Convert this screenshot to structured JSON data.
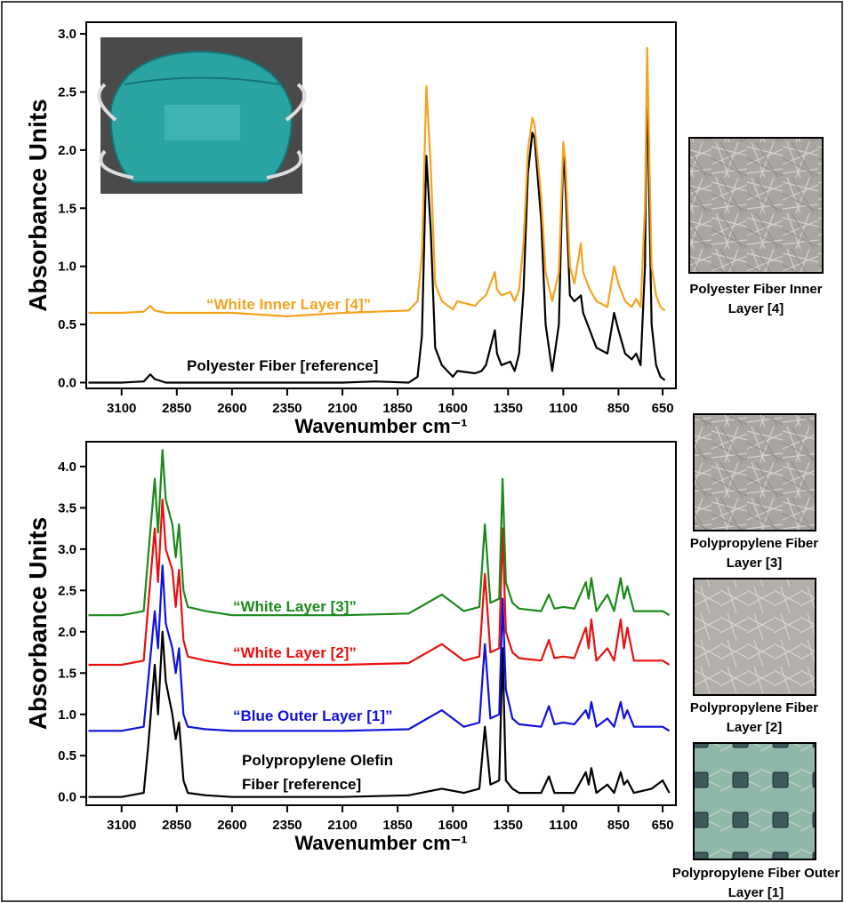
{
  "chart_data": [
    {
      "type": "line",
      "x_label": "Wavenumber cm⁻¹",
      "y_label": "Absorbance Units",
      "xlim": [
        3260,
        590
      ],
      "ylim": [
        -0.05,
        3.1
      ],
      "xticks": [
        3100,
        2850,
        2600,
        2350,
        2100,
        1850,
        1600,
        1350,
        1100,
        850,
        650
      ],
      "yticks": [
        {
          "value": 0,
          "label": "0.0"
        },
        0.5,
        {
          "value": 1,
          "label": "1.0"
        },
        1.5,
        {
          "value": 2,
          "label": "2.0"
        },
        2.5,
        {
          "value": 3,
          "label": "3.0"
        }
      ],
      "x": [
        3250,
        3100,
        3000,
        2970,
        2950,
        2900,
        2850,
        2600,
        2350,
        2100,
        1950,
        1800,
        1760,
        1740,
        1720,
        1700,
        1680,
        1650,
        1600,
        1580,
        1500,
        1470,
        1450,
        1410,
        1400,
        1380,
        1340,
        1320,
        1300,
        1280,
        1260,
        1240,
        1230,
        1200,
        1180,
        1150,
        1120,
        1100,
        1090,
        1070,
        1050,
        1020,
        1010,
        980,
        950,
        900,
        870,
        850,
        820,
        790,
        770,
        750,
        730,
        720,
        710,
        700,
        680,
        660,
        640
      ],
      "series": [
        {
          "name": "Polyester Fiber [reference]",
          "color": "#000000",
          "values": [
            0,
            0,
            0.01,
            0.07,
            0.03,
            0,
            0,
            0,
            0,
            0,
            0.01,
            0,
            0.05,
            0.4,
            1.95,
            1.3,
            0.3,
            0.15,
            0.05,
            0.1,
            0.08,
            0.1,
            0.15,
            0.45,
            0.25,
            0.15,
            0.18,
            0.1,
            0.25,
            0.8,
            1.8,
            2.15,
            2.1,
            1.4,
            0.5,
            0.1,
            0.5,
            2.0,
            1.7,
            0.75,
            0.7,
            0.75,
            0.6,
            0.45,
            0.3,
            0.25,
            0.6,
            0.45,
            0.25,
            0.2,
            0.25,
            0.15,
            1.0,
            2.7,
            1.5,
            0.5,
            0.15,
            0.05,
            0.02
          ]
        },
        {
          "name": "“White Inner Layer [4]”",
          "color": "#f5a31f",
          "values": [
            0.6,
            0.6,
            0.61,
            0.66,
            0.62,
            0.6,
            0.6,
            0.6,
            0.57,
            0.6,
            0.61,
            0.62,
            0.7,
            1.1,
            2.55,
            1.85,
            0.85,
            0.7,
            0.63,
            0.7,
            0.66,
            0.72,
            0.75,
            0.95,
            0.8,
            0.75,
            0.78,
            0.7,
            0.8,
            1.2,
            2.0,
            2.28,
            2.22,
            1.6,
            0.95,
            0.7,
            0.95,
            2.07,
            1.9,
            1.0,
            0.85,
            1.2,
            0.95,
            0.8,
            0.7,
            0.65,
            1.0,
            0.85,
            0.7,
            0.65,
            0.72,
            0.65,
            1.5,
            2.88,
            1.9,
            1.0,
            0.75,
            0.65,
            0.62
          ]
        }
      ]
    },
    {
      "type": "line",
      "x_label": "Wavenumber cm⁻¹",
      "y_label": "Absorbance Units",
      "xlim": [
        3260,
        590
      ],
      "ylim": [
        -0.1,
        4.3
      ],
      "xticks": [
        3100,
        2850,
        2600,
        2350,
        2100,
        1850,
        1600,
        1350,
        1100,
        850,
        650
      ],
      "yticks": [
        {
          "value": 0,
          "label": "0.0"
        },
        0.5,
        {
          "value": 1,
          "label": "1.0"
        },
        1.5,
        {
          "value": 2,
          "label": "2.0"
        },
        2.5,
        {
          "value": 3,
          "label": "3.0"
        },
        3.5,
        {
          "value": 4,
          "label": "4.0"
        }
      ],
      "x": [
        3250,
        3100,
        3000,
        2980,
        2950,
        2935,
        2915,
        2900,
        2870,
        2855,
        2840,
        2820,
        2800,
        2720,
        2600,
        2350,
        2100,
        1800,
        1650,
        1550,
        1480,
        1455,
        1430,
        1390,
        1375,
        1360,
        1330,
        1300,
        1200,
        1165,
        1140,
        1100,
        1050,
        998,
        985,
        973,
        950,
        900,
        870,
        840,
        825,
        810,
        780,
        700,
        650,
        620
      ],
      "series": [
        {
          "name": "Polypropylene Olefin Fiber [reference]",
          "color": "#000000",
          "values": [
            0,
            0,
            0.05,
            0.6,
            1.6,
            1.0,
            2.0,
            1.4,
            1.0,
            0.7,
            0.9,
            0.2,
            0.05,
            0.02,
            0,
            0,
            0,
            0.02,
            0.1,
            0.05,
            0.1,
            0.85,
            0.15,
            0.2,
            1.8,
            0.2,
            0.1,
            0.05,
            0.05,
            0.25,
            0.05,
            0.05,
            0.05,
            0.3,
            0.15,
            0.35,
            0.05,
            0.15,
            0.05,
            0.3,
            0.15,
            0.2,
            0.05,
            0.1,
            0.2,
            0.05
          ]
        },
        {
          "name": "“Blue Outer Layer [1]”",
          "color": "#1010e0",
          "values": [
            0.8,
            0.8,
            0.85,
            1.4,
            2.25,
            1.8,
            2.8,
            2.1,
            1.8,
            1.5,
            1.8,
            1.0,
            0.85,
            0.82,
            0.8,
            0.8,
            0.8,
            0.82,
            1.05,
            0.85,
            0.9,
            1.85,
            0.95,
            1.0,
            2.4,
            1.3,
            0.95,
            0.88,
            0.85,
            1.1,
            0.88,
            0.9,
            0.88,
            1.05,
            0.95,
            1.15,
            0.85,
            0.95,
            0.85,
            1.15,
            0.95,
            1.05,
            0.85,
            0.85,
            0.85,
            0.8
          ]
        },
        {
          "name": "“White Layer [2]”",
          "color": "#e81010",
          "values": [
            1.6,
            1.6,
            1.65,
            2.3,
            3.25,
            2.6,
            3.6,
            3.0,
            2.75,
            2.3,
            2.75,
            1.9,
            1.7,
            1.65,
            1.6,
            1.6,
            1.6,
            1.62,
            1.85,
            1.65,
            1.7,
            2.7,
            1.75,
            1.8,
            3.25,
            2.0,
            1.75,
            1.68,
            1.65,
            1.9,
            1.68,
            1.7,
            1.68,
            2.05,
            1.8,
            2.15,
            1.65,
            1.8,
            1.65,
            2.15,
            1.8,
            2.05,
            1.65,
            1.65,
            1.65,
            1.6
          ]
        },
        {
          "name": "“White Layer [3]”",
          "color": "#1a8a1a",
          "values": [
            2.2,
            2.2,
            2.25,
            2.9,
            3.85,
            3.2,
            4.2,
            3.6,
            3.3,
            2.9,
            3.3,
            2.5,
            2.3,
            2.25,
            2.2,
            2.2,
            2.2,
            2.22,
            2.45,
            2.25,
            2.3,
            3.3,
            2.35,
            2.4,
            3.85,
            2.6,
            2.35,
            2.28,
            2.25,
            2.45,
            2.28,
            2.3,
            2.28,
            2.6,
            2.4,
            2.65,
            2.25,
            2.45,
            2.25,
            2.65,
            2.4,
            2.55,
            2.25,
            2.25,
            2.25,
            2.2
          ]
        }
      ]
    }
  ],
  "side_images": [
    {
      "caption": "Polyester Fiber Inner Layer [4]"
    },
    {
      "caption": "Polypropylene Fiber Layer [3]"
    },
    {
      "caption": "Polypropylene Fiber Layer [2]"
    },
    {
      "caption": "Polypropylene Fiber Outer Layer [1]"
    }
  ]
}
